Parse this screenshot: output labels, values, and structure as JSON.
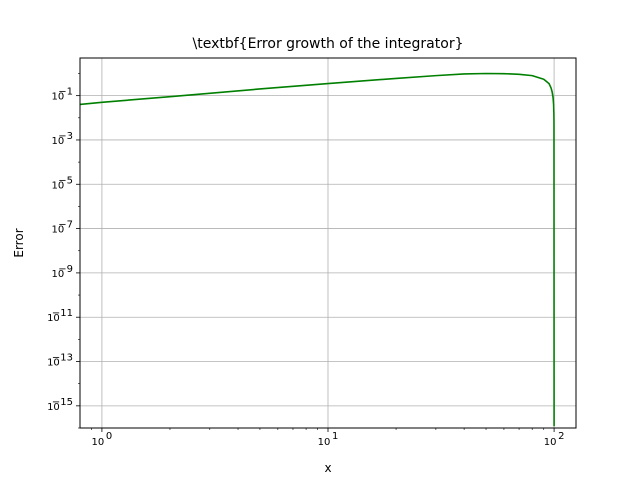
{
  "chart_data": {
    "type": "line",
    "title": "\\textbf{Error growth of the integrator}",
    "xlabel": "x",
    "ylabel": "Error",
    "xscale": "log",
    "yscale": "log",
    "xlim": [
      0.8,
      125
    ],
    "ylim": [
      1e-16,
      5
    ],
    "grid": true,
    "color": "#008000",
    "x_ticks": [
      {
        "value": 1,
        "base": "10",
        "exp": "0"
      },
      {
        "value": 10,
        "base": "10",
        "exp": "1"
      },
      {
        "value": 100,
        "base": "10",
        "exp": "2"
      }
    ],
    "y_ticks": [
      {
        "value": 0.1,
        "base": "10",
        "exp": "−1"
      },
      {
        "value": 0.001,
        "base": "10",
        "exp": "−3"
      },
      {
        "value": 1e-05,
        "base": "10",
        "exp": "−5"
      },
      {
        "value": 1e-07,
        "base": "10",
        "exp": "−7"
      },
      {
        "value": 1e-09,
        "base": "10",
        "exp": "−9"
      },
      {
        "value": 1e-11,
        "base": "10",
        "exp": "−11"
      },
      {
        "value": 1e-13,
        "base": "10",
        "exp": "−13"
      },
      {
        "value": 1e-15,
        "base": "10",
        "exp": "−15"
      }
    ],
    "series": [
      {
        "x": [
          0.8,
          1,
          2,
          5,
          10,
          20,
          30,
          40,
          50,
          60,
          70,
          80,
          90,
          95,
          97,
          98,
          99,
          99.5,
          99.8,
          99.9,
          100
        ],
        "y": [
          0.04,
          0.05,
          0.09,
          0.2,
          0.35,
          0.6,
          0.8,
          0.95,
          1.0,
          0.98,
          0.92,
          0.8,
          0.55,
          0.35,
          0.22,
          0.15,
          0.08,
          0.04,
          0.015,
          0.006,
          1.2e-16
        ]
      }
    ]
  }
}
